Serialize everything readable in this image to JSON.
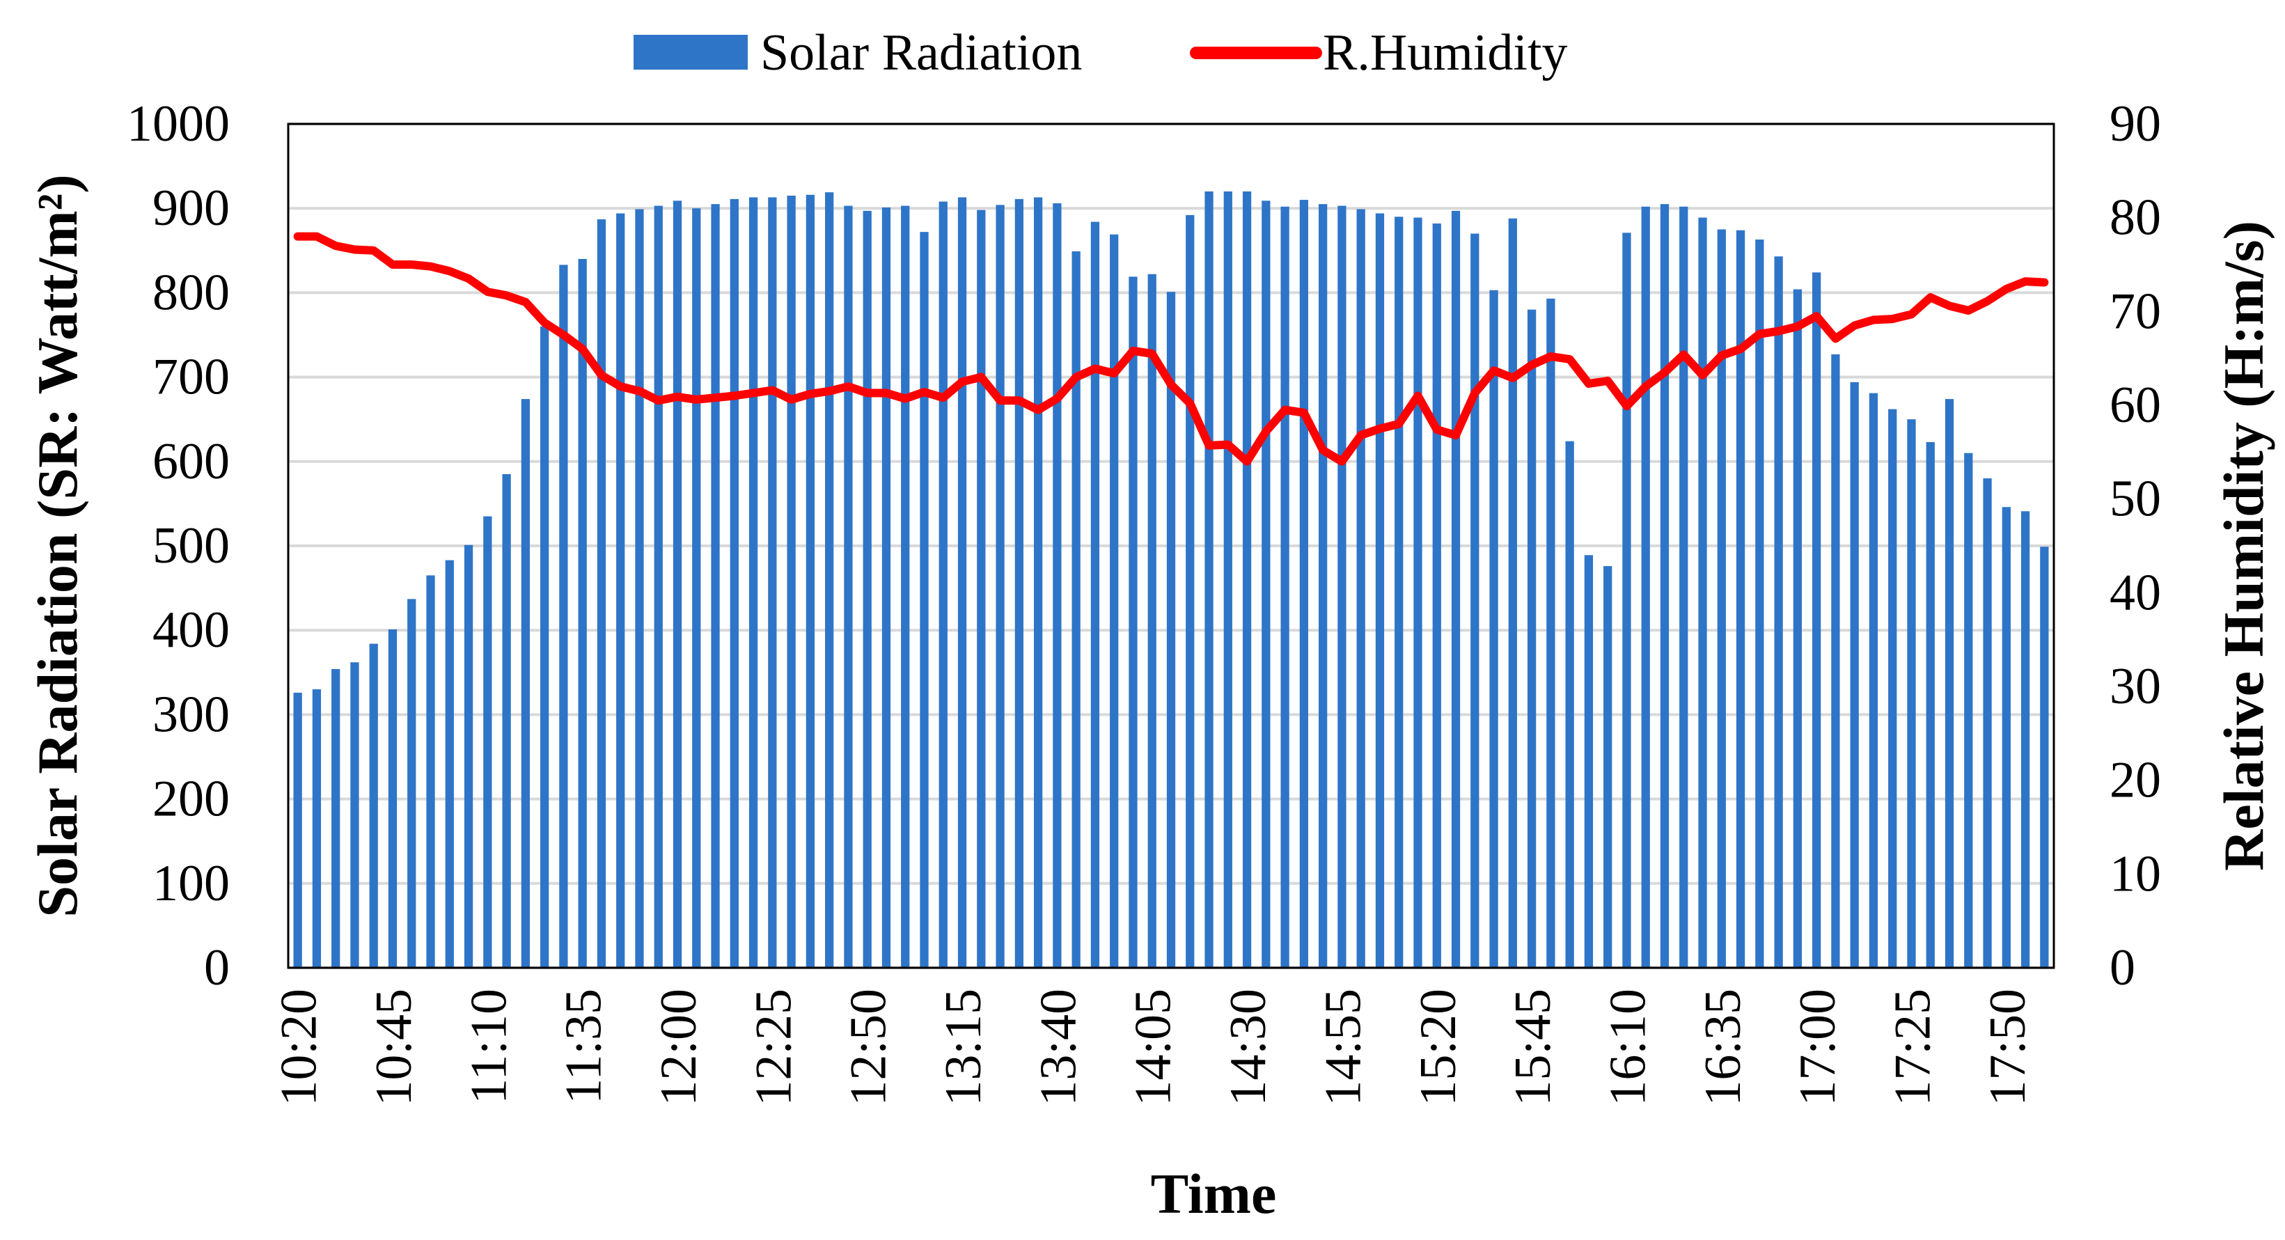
{
  "chart_data": {
    "type": "bar+line",
    "xlabel": "Time",
    "y_left_label": "Solar Radiation (SR: Watt/m²)",
    "y_right_label": "Relative Humidity (H:m/s)",
    "y_left_lim": [
      0,
      1000
    ],
    "y_left_ticks": [
      "0",
      "100",
      "200",
      "300",
      "400",
      "500",
      "600",
      "700",
      "800",
      "900",
      "1000"
    ],
    "y_right_lim": [
      0,
      90
    ],
    "y_right_ticks": [
      "0",
      "10",
      "20",
      "30",
      "40",
      "50",
      "60",
      "70",
      "80",
      "90"
    ],
    "x_tick_labels": [
      "10:20",
      "10:45",
      "11:10",
      "11:35",
      "12:00",
      "12:25",
      "12:50",
      "13:15",
      "13:40",
      "14:05",
      "14:30",
      "14:55",
      "15:20",
      "15:45",
      "16:10",
      "16:35",
      "17:00",
      "17:25",
      "17:50"
    ],
    "x_tick_every": 5,
    "grid": true,
    "legend_position": "top",
    "colors": {
      "bar": "#2e75c8",
      "line": "#ff0000",
      "grid": "#d9d9d9"
    },
    "series": [
      {
        "name": "Solar Radiation",
        "type": "bar",
        "axis": "left",
        "values": [
          326,
          330,
          354,
          362,
          384,
          401,
          437,
          465,
          483,
          501,
          535,
          585,
          674,
          760,
          833,
          840,
          887,
          894,
          899,
          903,
          909,
          900,
          905,
          911,
          913,
          913,
          915,
          916,
          919,
          903,
          897,
          901,
          903,
          872,
          908,
          913,
          898,
          904,
          911,
          913,
          906,
          849,
          884,
          869,
          819,
          822,
          801,
          892,
          920,
          920,
          920,
          909,
          902,
          910,
          905,
          903,
          899,
          894,
          890,
          889,
          882,
          897,
          870,
          803,
          888,
          780,
          793,
          624,
          489,
          476,
          871,
          902,
          905,
          902,
          889,
          875,
          874,
          863,
          843,
          804,
          824,
          727,
          694,
          681,
          662,
          650,
          623,
          674,
          610,
          580,
          546,
          541,
          499
        ]
      },
      {
        "name": "R.Humidity",
        "type": "line",
        "axis": "right",
        "values": [
          78,
          78,
          77,
          76.6,
          76.5,
          75,
          75,
          74.8,
          74.3,
          73.5,
          72.1,
          71.7,
          71,
          68.8,
          67.5,
          66,
          63.2,
          62,
          61.5,
          60.5,
          60.9,
          60.6,
          60.8,
          61,
          61.3,
          61.6,
          60.6,
          61.2,
          61.5,
          62,
          61.3,
          61.3,
          60.7,
          61.4,
          60.8,
          62.5,
          63,
          60.5,
          60.5,
          59.5,
          60.7,
          63,
          63.9,
          63.4,
          65.8,
          65.5,
          62.2,
          60.2,
          55.7,
          55.8,
          54,
          57.2,
          59.5,
          59.2,
          55.2,
          54,
          56.8,
          57.5,
          58,
          61,
          57.4,
          56.8,
          61.3,
          63.7,
          62.9,
          64.3,
          65.2,
          64.9,
          62.3,
          62.6,
          59.9,
          62,
          63.5,
          65.4,
          63.2,
          65.3,
          66,
          67.6,
          67.9,
          68.4,
          69.5,
          67.1,
          68.5,
          69.1,
          69.2,
          69.7,
          71.5,
          70.6,
          70.1,
          71.1,
          72.4,
          73.2,
          73.1
        ]
      }
    ]
  }
}
